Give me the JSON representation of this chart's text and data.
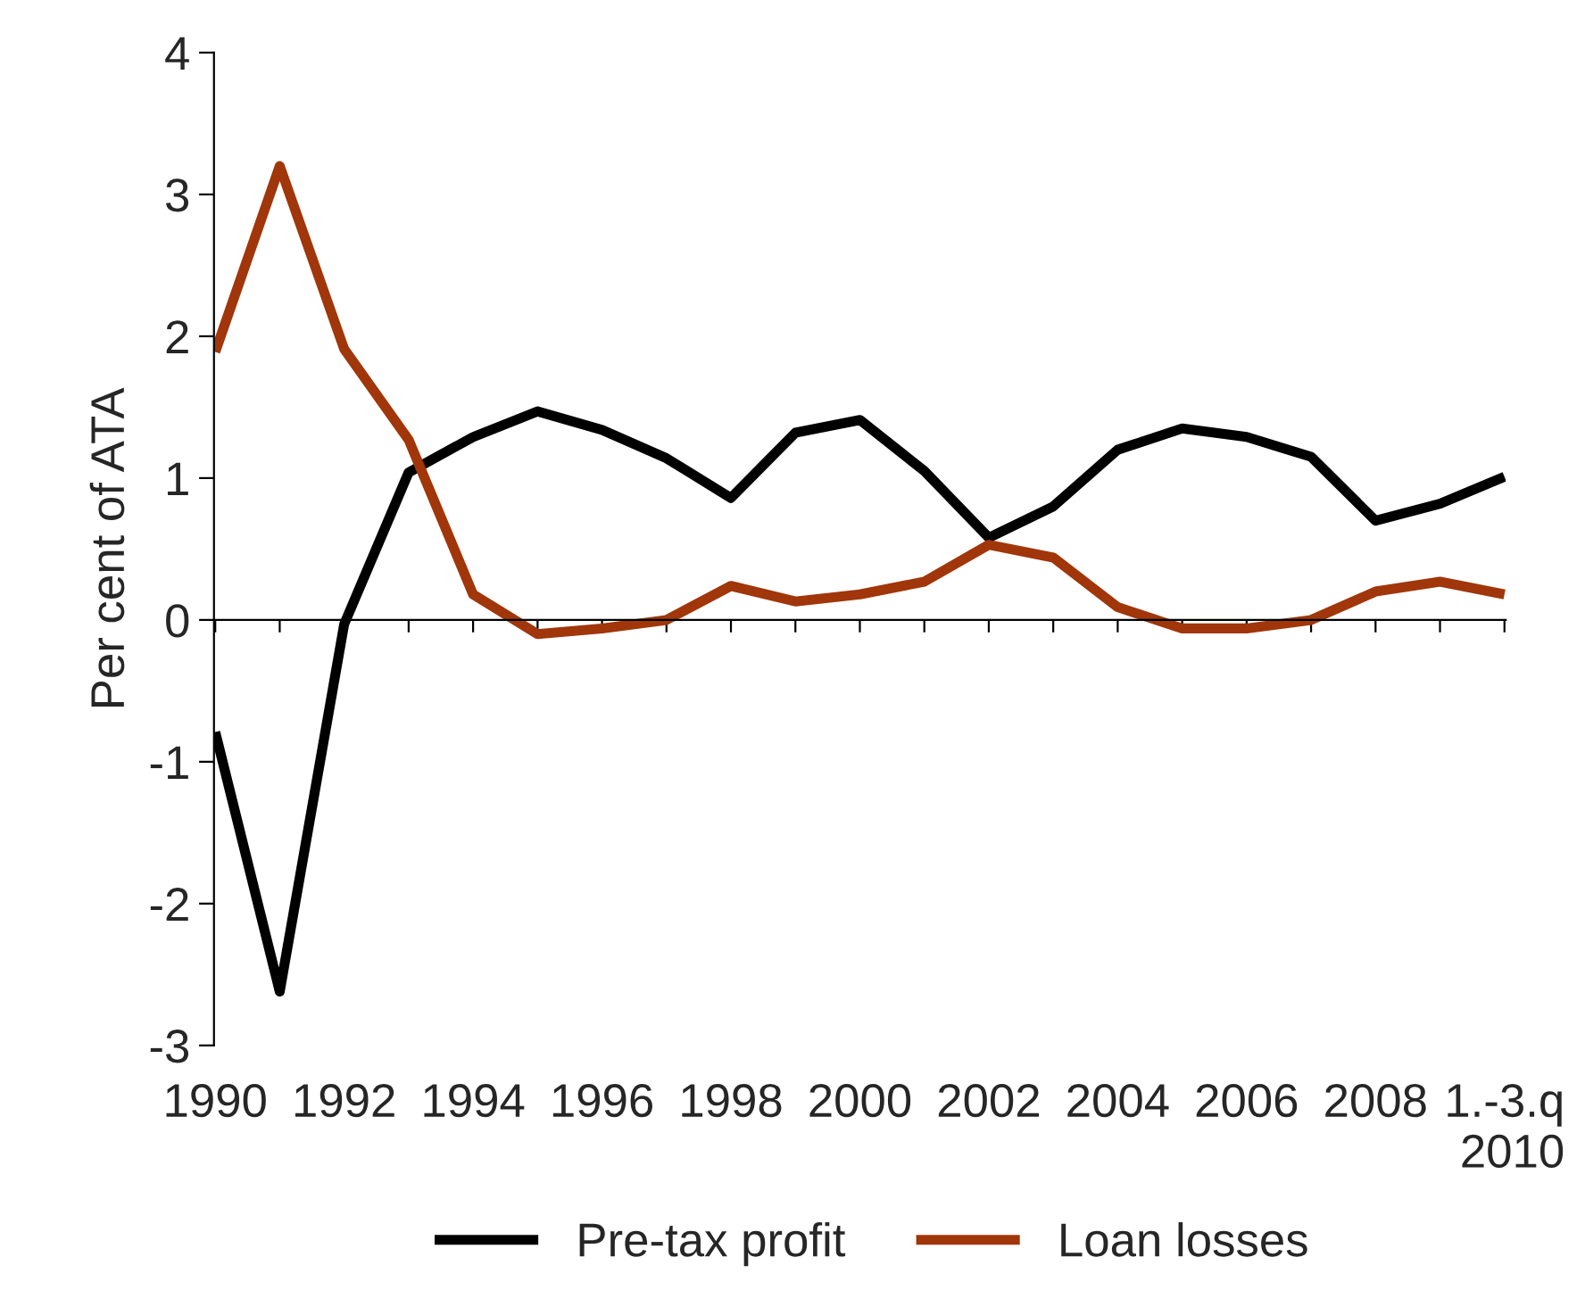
{
  "chart_data": {
    "type": "line",
    "ylabel": "Per cent of ATA",
    "categories": [
      "1990",
      null,
      "1992",
      null,
      "1994",
      null,
      "1996",
      null,
      "1998",
      null,
      "2000",
      null,
      "2002",
      null,
      "2004",
      null,
      "2006",
      null,
      "2008",
      null,
      "1.-3.q\n2010"
    ],
    "series": [
      {
        "name": "Pre-tax profit",
        "color": "#000000",
        "values": [
          -0.79,
          -2.62,
          -0.03,
          1.04,
          1.29,
          1.47,
          1.34,
          1.14,
          0.86,
          1.32,
          1.41,
          1.05,
          0.58,
          0.8,
          1.2,
          1.35,
          1.29,
          1.15,
          0.7,
          0.82,
          1.01
        ]
      },
      {
        "name": "Loan losses",
        "color": "#a0360a",
        "values": [
          1.89,
          3.2,
          1.91,
          1.27,
          0.18,
          -0.1,
          -0.06,
          0.0,
          0.24,
          0.13,
          0.18,
          0.27,
          0.53,
          0.44,
          0.09,
          -0.06,
          -0.06,
          0.0,
          0.2,
          0.27,
          0.18
        ]
      }
    ],
    "ylim": [
      -3,
      4
    ],
    "yticks": [
      -3,
      -2,
      -1,
      0,
      1,
      2,
      3,
      4
    ],
    "legend": "bottom",
    "marker": "none",
    "line_style": "solid"
  }
}
